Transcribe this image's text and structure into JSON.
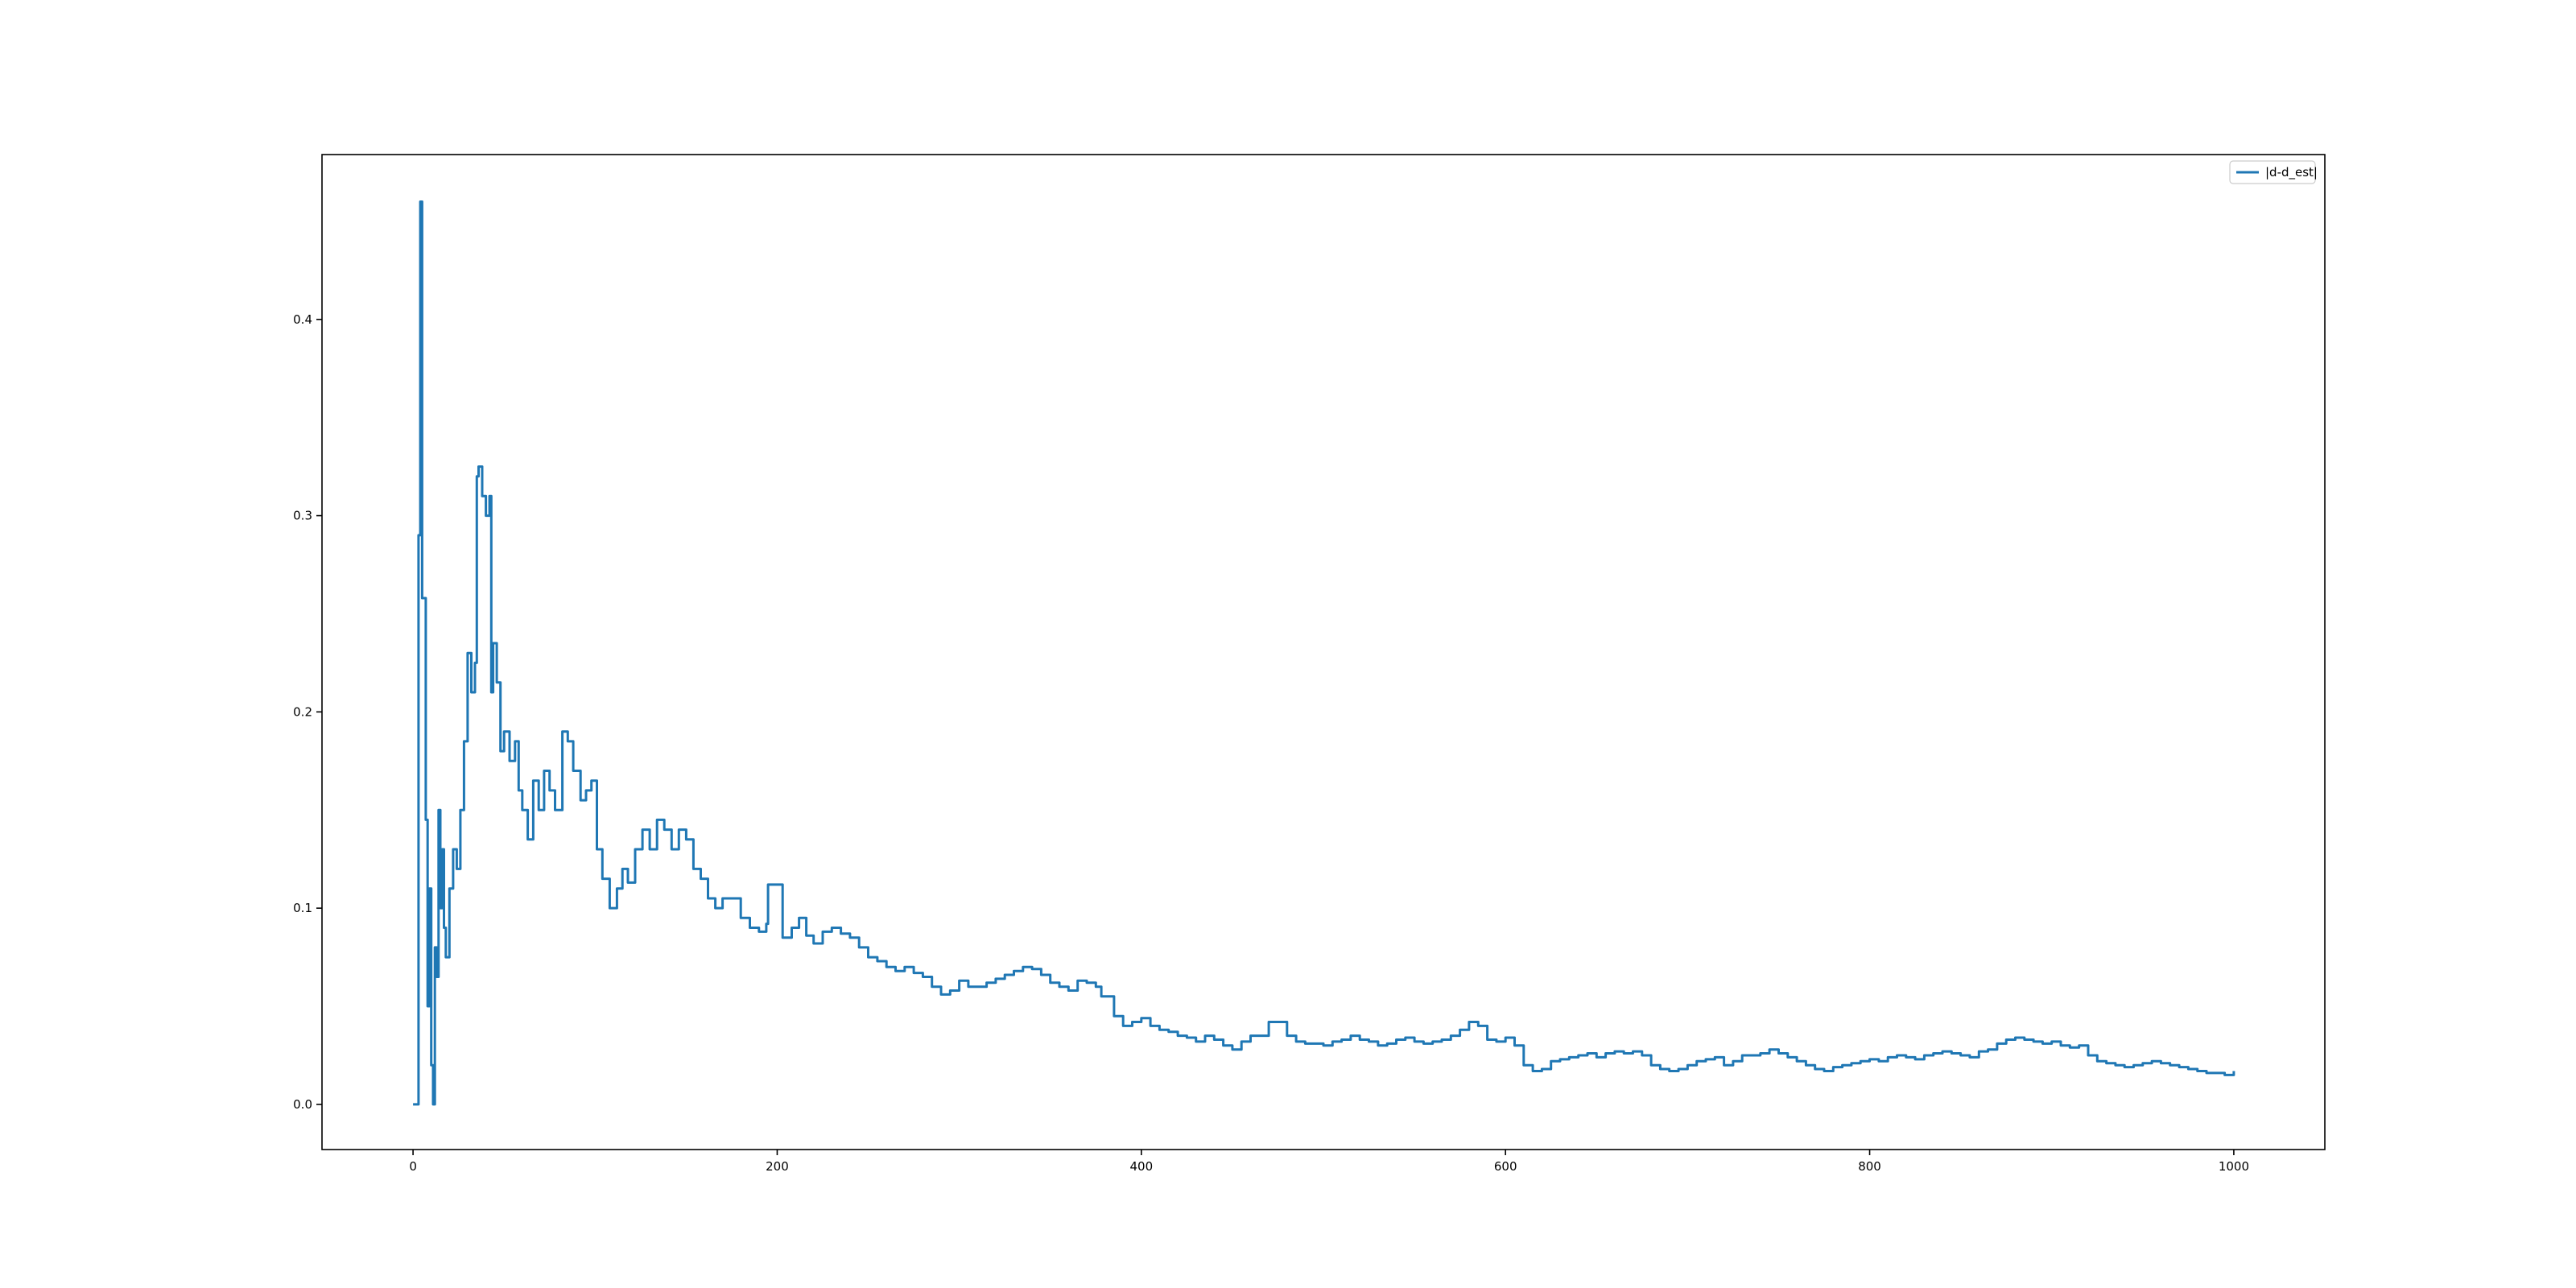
{
  "chart_data": {
    "type": "line",
    "title": "",
    "xlabel": "",
    "ylabel": "",
    "xlim": [
      -50,
      1050
    ],
    "ylim": [
      -0.023,
      0.484
    ],
    "x_ticks": [
      0,
      200,
      400,
      600,
      800,
      1000
    ],
    "x_tick_labels": [
      "0",
      "200",
      "400",
      "600",
      "800",
      "1000"
    ],
    "y_ticks": [
      0.0,
      0.1,
      0.2,
      0.3,
      0.4
    ],
    "y_tick_labels": [
      "0.0",
      "0.1",
      "0.2",
      "0.3",
      "0.4"
    ],
    "grid": false,
    "legend": {
      "position": "top-right",
      "entries": [
        "|d-d_est|"
      ]
    },
    "series": [
      {
        "name": "|d-d_est|",
        "color": "#1f77b4",
        "step": true,
        "points": [
          [
            0,
            0.0
          ],
          [
            3,
            0.0
          ],
          [
            3,
            0.29
          ],
          [
            4,
            0.29
          ],
          [
            4,
            0.46
          ],
          [
            5,
            0.46
          ],
          [
            5,
            0.258
          ],
          [
            6,
            0.258
          ],
          [
            7,
            0.145
          ],
          [
            8,
            0.05
          ],
          [
            9,
            0.11
          ],
          [
            10,
            0.02
          ],
          [
            11,
            0.0
          ],
          [
            12,
            0.08
          ],
          [
            13,
            0.065
          ],
          [
            14,
            0.15
          ],
          [
            15,
            0.1
          ],
          [
            16,
            0.13
          ],
          [
            17,
            0.09
          ],
          [
            18,
            0.075
          ],
          [
            20,
            0.11
          ],
          [
            22,
            0.13
          ],
          [
            24,
            0.12
          ],
          [
            26,
            0.15
          ],
          [
            28,
            0.185
          ],
          [
            30,
            0.23
          ],
          [
            32,
            0.21
          ],
          [
            34,
            0.225
          ],
          [
            35,
            0.32
          ],
          [
            36,
            0.325
          ],
          [
            38,
            0.31
          ],
          [
            40,
            0.3
          ],
          [
            42,
            0.31
          ],
          [
            43,
            0.21
          ],
          [
            44,
            0.235
          ],
          [
            46,
            0.215
          ],
          [
            48,
            0.18
          ],
          [
            50,
            0.19
          ],
          [
            53,
            0.175
          ],
          [
            56,
            0.185
          ],
          [
            58,
            0.16
          ],
          [
            60,
            0.15
          ],
          [
            63,
            0.135
          ],
          [
            66,
            0.165
          ],
          [
            69,
            0.15
          ],
          [
            72,
            0.17
          ],
          [
            75,
            0.16
          ],
          [
            78,
            0.15
          ],
          [
            82,
            0.15
          ],
          [
            82,
            0.19
          ],
          [
            85,
            0.185
          ],
          [
            88,
            0.17
          ],
          [
            92,
            0.155
          ],
          [
            95,
            0.16
          ],
          [
            98,
            0.165
          ],
          [
            101,
            0.13
          ],
          [
            104,
            0.115
          ],
          [
            108,
            0.1
          ],
          [
            112,
            0.11
          ],
          [
            115,
            0.12
          ],
          [
            118,
            0.113
          ],
          [
            122,
            0.13
          ],
          [
            126,
            0.14
          ],
          [
            130,
            0.13
          ],
          [
            134,
            0.145
          ],
          [
            138,
            0.14
          ],
          [
            142,
            0.13
          ],
          [
            146,
            0.14
          ],
          [
            150,
            0.135
          ],
          [
            154,
            0.12
          ],
          [
            158,
            0.115
          ],
          [
            162,
            0.105
          ],
          [
            166,
            0.1
          ],
          [
            170,
            0.105
          ],
          [
            175,
            0.105
          ],
          [
            180,
            0.095
          ],
          [
            185,
            0.09
          ],
          [
            190,
            0.088
          ],
          [
            194,
            0.092
          ],
          [
            195,
            0.112
          ],
          [
            202,
            0.112
          ],
          [
            203,
            0.085
          ],
          [
            208,
            0.09
          ],
          [
            212,
            0.095
          ],
          [
            216,
            0.086
          ],
          [
            220,
            0.082
          ],
          [
            225,
            0.088
          ],
          [
            230,
            0.09
          ],
          [
            235,
            0.087
          ],
          [
            240,
            0.085
          ],
          [
            245,
            0.08
          ],
          [
            250,
            0.075
          ],
          [
            255,
            0.073
          ],
          [
            260,
            0.07
          ],
          [
            265,
            0.068
          ],
          [
            270,
            0.07
          ],
          [
            275,
            0.067
          ],
          [
            280,
            0.065
          ],
          [
            285,
            0.06
          ],
          [
            290,
            0.056
          ],
          [
            295,
            0.058
          ],
          [
            300,
            0.063
          ],
          [
            305,
            0.06
          ],
          [
            310,
            0.06
          ],
          [
            315,
            0.062
          ],
          [
            320,
            0.064
          ],
          [
            325,
            0.066
          ],
          [
            330,
            0.068
          ],
          [
            335,
            0.07
          ],
          [
            340,
            0.069
          ],
          [
            345,
            0.066
          ],
          [
            350,
            0.062
          ],
          [
            355,
            0.06
          ],
          [
            360,
            0.058
          ],
          [
            365,
            0.063
          ],
          [
            370,
            0.062
          ],
          [
            375,
            0.06
          ],
          [
            378,
            0.055
          ],
          [
            382,
            0.055
          ],
          [
            385,
            0.045
          ],
          [
            390,
            0.04
          ],
          [
            395,
            0.042
          ],
          [
            400,
            0.044
          ],
          [
            405,
            0.04
          ],
          [
            410,
            0.038
          ],
          [
            415,
            0.037
          ],
          [
            420,
            0.035
          ],
          [
            425,
            0.034
          ],
          [
            430,
            0.032
          ],
          [
            435,
            0.035
          ],
          [
            440,
            0.033
          ],
          [
            445,
            0.03
          ],
          [
            450,
            0.028
          ],
          [
            455,
            0.032
          ],
          [
            460,
            0.035
          ],
          [
            465,
            0.035
          ],
          [
            470,
            0.042
          ],
          [
            475,
            0.042
          ],
          [
            480,
            0.035
          ],
          [
            485,
            0.032
          ],
          [
            490,
            0.031
          ],
          [
            495,
            0.031
          ],
          [
            500,
            0.03
          ],
          [
            505,
            0.032
          ],
          [
            510,
            0.033
          ],
          [
            515,
            0.035
          ],
          [
            520,
            0.033
          ],
          [
            525,
            0.032
          ],
          [
            530,
            0.03
          ],
          [
            535,
            0.031
          ],
          [
            540,
            0.033
          ],
          [
            545,
            0.034
          ],
          [
            550,
            0.032
          ],
          [
            555,
            0.031
          ],
          [
            560,
            0.032
          ],
          [
            565,
            0.033
          ],
          [
            570,
            0.035
          ],
          [
            575,
            0.038
          ],
          [
            580,
            0.042
          ],
          [
            585,
            0.04
          ],
          [
            590,
            0.033
          ],
          [
            595,
            0.032
          ],
          [
            600,
            0.034
          ],
          [
            605,
            0.03
          ],
          [
            610,
            0.02
          ],
          [
            615,
            0.017
          ],
          [
            620,
            0.018
          ],
          [
            625,
            0.022
          ],
          [
            630,
            0.023
          ],
          [
            635,
            0.024
          ],
          [
            640,
            0.025
          ],
          [
            645,
            0.026
          ],
          [
            650,
            0.024
          ],
          [
            655,
            0.026
          ],
          [
            660,
            0.027
          ],
          [
            665,
            0.026
          ],
          [
            670,
            0.027
          ],
          [
            675,
            0.025
          ],
          [
            680,
            0.02
          ],
          [
            685,
            0.018
          ],
          [
            690,
            0.017
          ],
          [
            695,
            0.018
          ],
          [
            700,
            0.02
          ],
          [
            705,
            0.022
          ],
          [
            710,
            0.023
          ],
          [
            715,
            0.024
          ],
          [
            720,
            0.02
          ],
          [
            725,
            0.022
          ],
          [
            730,
            0.025
          ],
          [
            735,
            0.025
          ],
          [
            740,
            0.026
          ],
          [
            745,
            0.028
          ],
          [
            750,
            0.026
          ],
          [
            755,
            0.024
          ],
          [
            760,
            0.022
          ],
          [
            765,
            0.02
          ],
          [
            770,
            0.018
          ],
          [
            775,
            0.017
          ],
          [
            780,
            0.019
          ],
          [
            785,
            0.02
          ],
          [
            790,
            0.021
          ],
          [
            795,
            0.022
          ],
          [
            800,
            0.023
          ],
          [
            805,
            0.022
          ],
          [
            810,
            0.024
          ],
          [
            815,
            0.025
          ],
          [
            820,
            0.024
          ],
          [
            825,
            0.023
          ],
          [
            830,
            0.025
          ],
          [
            835,
            0.026
          ],
          [
            840,
            0.027
          ],
          [
            845,
            0.026
          ],
          [
            850,
            0.025
          ],
          [
            855,
            0.024
          ],
          [
            860,
            0.027
          ],
          [
            865,
            0.028
          ],
          [
            870,
            0.031
          ],
          [
            875,
            0.033
          ],
          [
            880,
            0.034
          ],
          [
            885,
            0.033
          ],
          [
            890,
            0.032
          ],
          [
            895,
            0.031
          ],
          [
            900,
            0.032
          ],
          [
            905,
            0.03
          ],
          [
            910,
            0.029
          ],
          [
            915,
            0.03
          ],
          [
            920,
            0.025
          ],
          [
            925,
            0.022
          ],
          [
            930,
            0.021
          ],
          [
            935,
            0.02
          ],
          [
            940,
            0.019
          ],
          [
            945,
            0.02
          ],
          [
            950,
            0.021
          ],
          [
            955,
            0.022
          ],
          [
            960,
            0.021
          ],
          [
            965,
            0.02
          ],
          [
            970,
            0.019
          ],
          [
            975,
            0.018
          ],
          [
            980,
            0.017
          ],
          [
            985,
            0.016
          ],
          [
            990,
            0.016
          ],
          [
            995,
            0.015
          ],
          [
            1000,
            0.017
          ]
        ]
      }
    ]
  }
}
